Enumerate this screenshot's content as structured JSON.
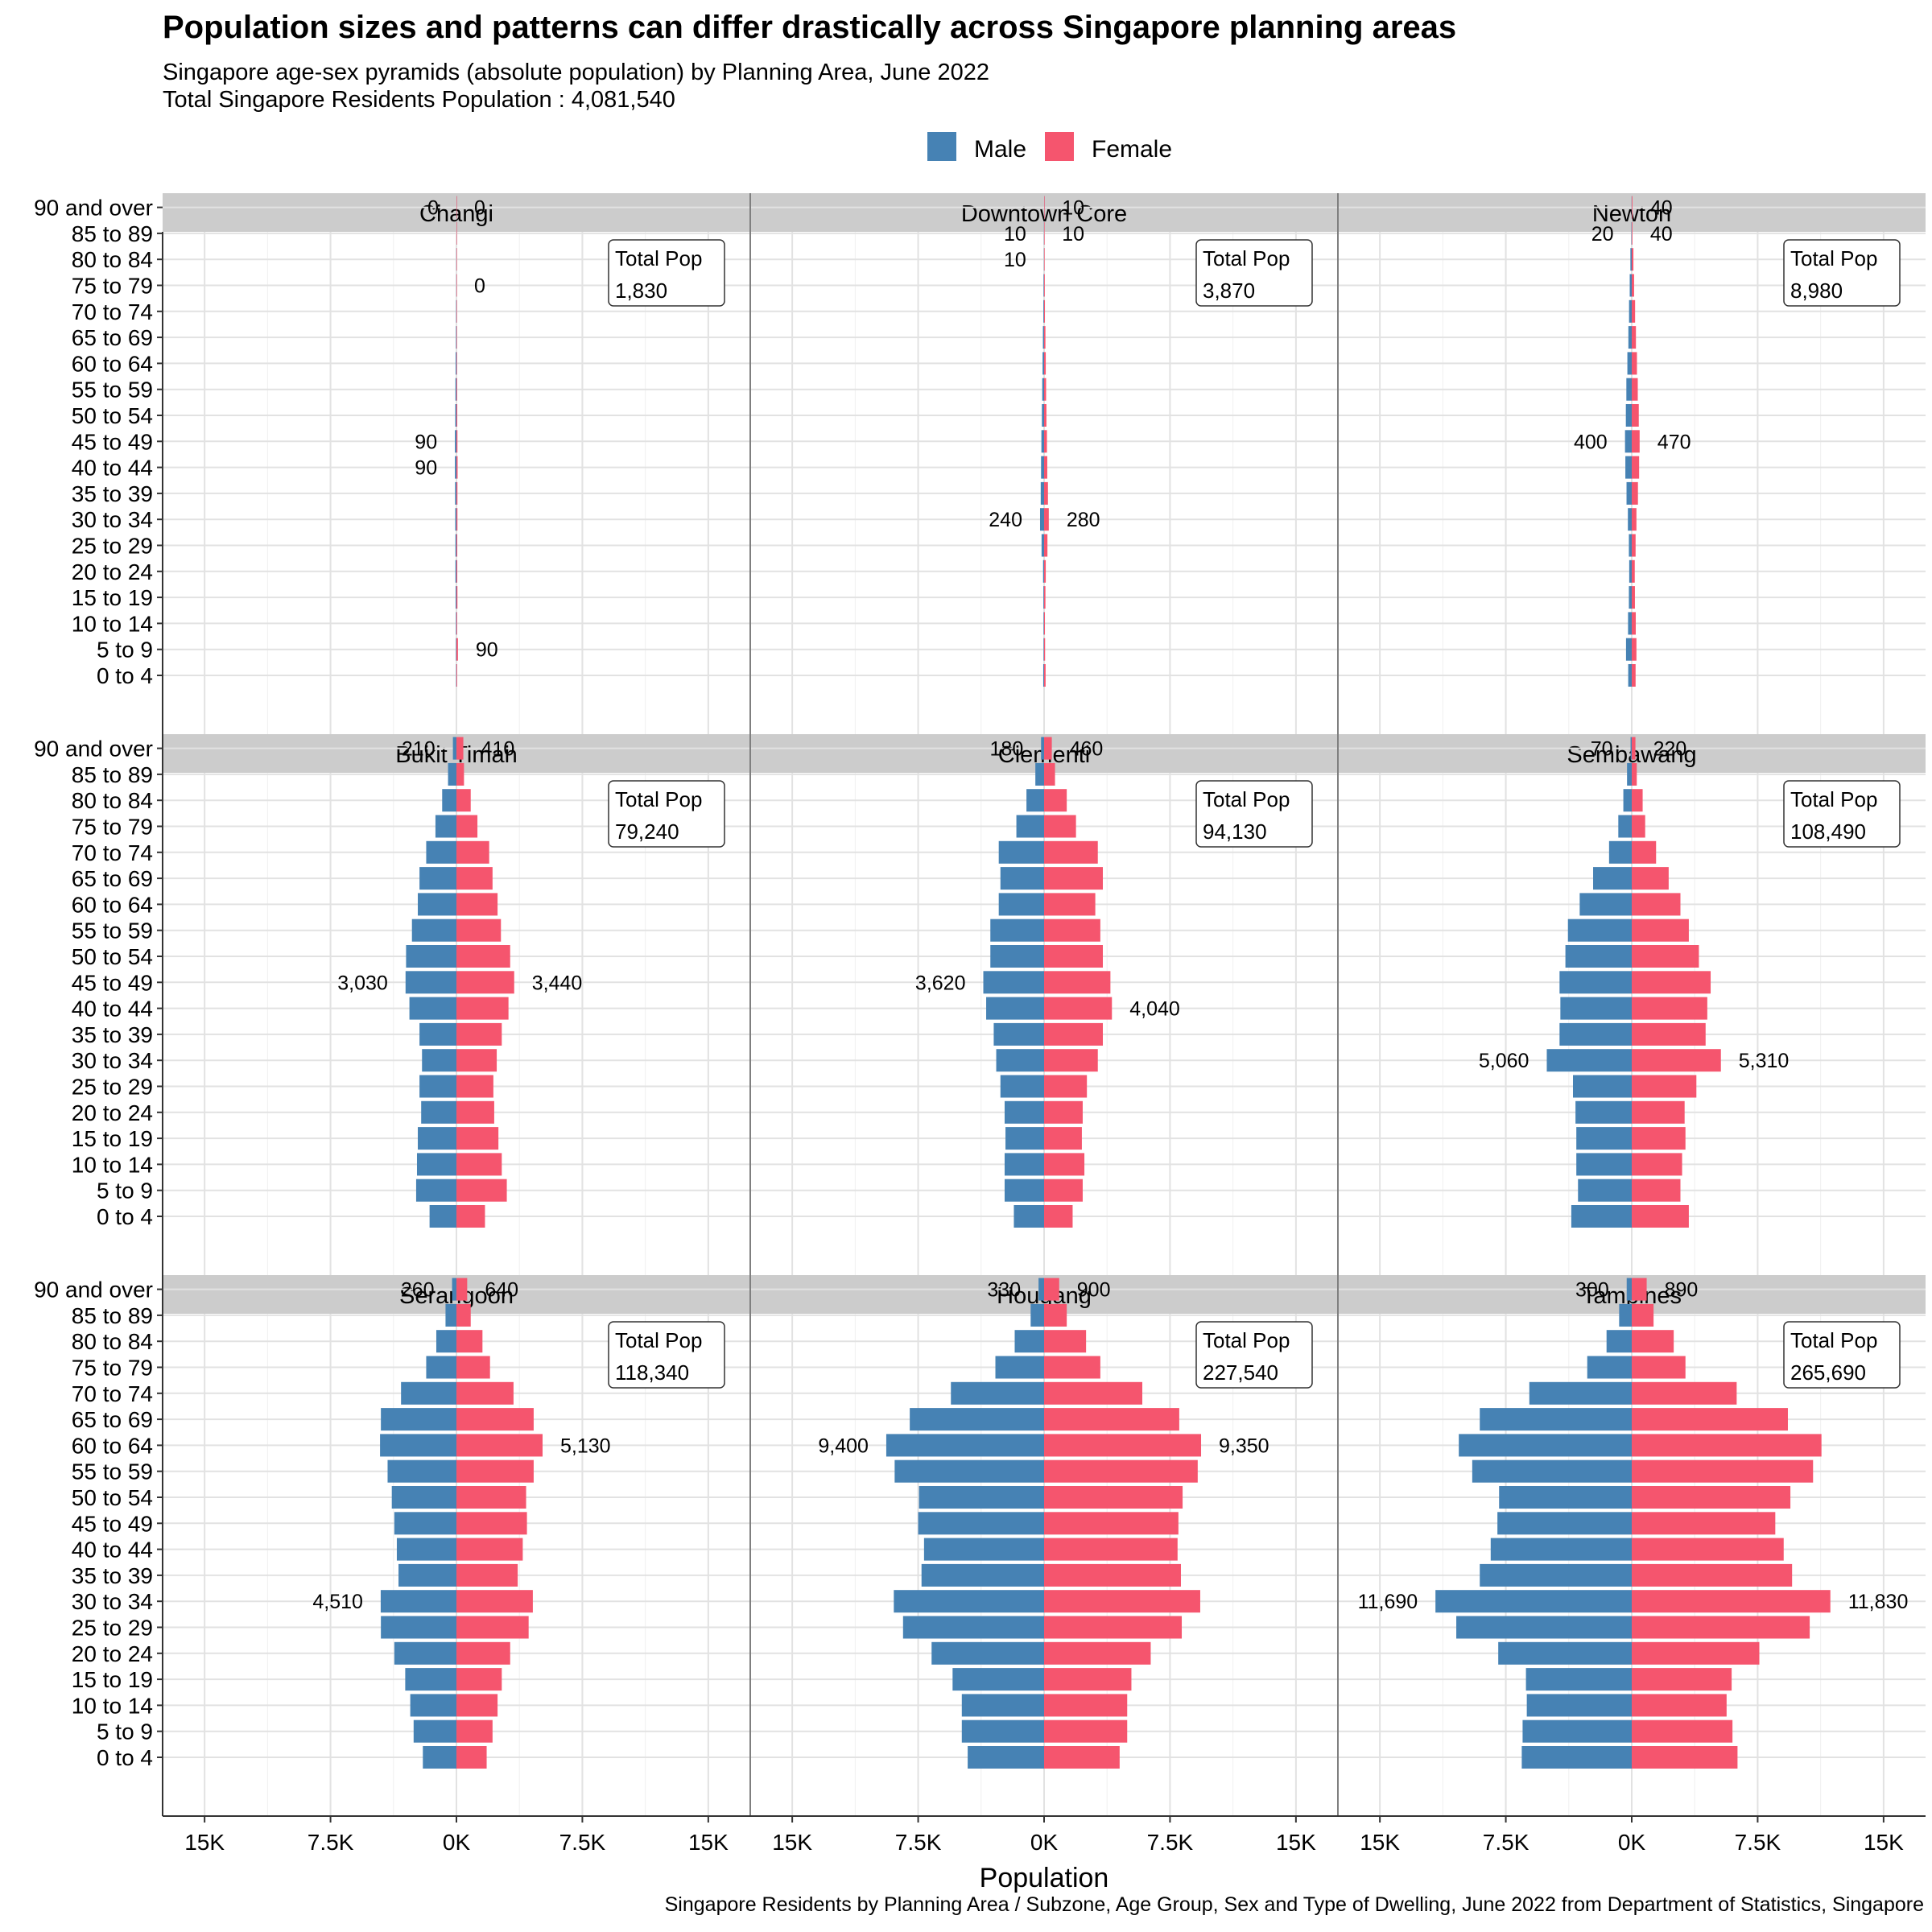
{
  "title": "Population sizes and patterns can differ drastically across Singapore planning areas",
  "subtitle_lines": [
    "Singapore age-sex pyramids (absolute population) by Planning Area, June 2022",
    "Total Singapore Residents Population : 4,081,540"
  ],
  "caption": "Singapore Residents by Planning Area / Subzone, Age Group, Sex and Type of Dwelling, June 2022 from Department of Statistics, Singapore",
  "colors": {
    "male": "#4682B4",
    "female": "#F5556E"
  },
  "chart_data": {
    "type": "bar",
    "orientation": "horizontal-pyramid",
    "xlabel": "Population",
    "x_ticks": [
      "15K",
      "7.5K",
      "0K",
      "7.5K",
      "15K"
    ],
    "xlim": [
      -17500,
      17500
    ],
    "legend": {
      "position": "top",
      "entries": [
        "Male",
        "Female"
      ]
    },
    "grid": true,
    "age_groups": [
      "0 to 4",
      "5 to 9",
      "10 to 14",
      "15 to 19",
      "20 to 24",
      "25 to 29",
      "30 to 34",
      "35 to 39",
      "40 to 44",
      "45 to 49",
      "50 to 54",
      "55 to 59",
      "60 to 64",
      "65 to 69",
      "70 to 74",
      "75 to 79",
      "80 to 84",
      "85 to 89",
      "90 and over"
    ],
    "total_label": "Total Pop",
    "panels": [
      {
        "name": "Changi",
        "total": "1,830",
        "male": [
          20,
          30,
          30,
          50,
          60,
          60,
          70,
          80,
          90,
          90,
          70,
          60,
          50,
          30,
          20,
          10,
          10,
          0,
          0
        ],
        "female": [
          40,
          90,
          40,
          60,
          50,
          50,
          60,
          60,
          70,
          60,
          50,
          40,
          30,
          20,
          10,
          0,
          0,
          0,
          0
        ],
        "labels": [
          {
            "side": "male",
            "age": 18,
            "text": "0"
          },
          {
            "side": "female",
            "age": 18,
            "text": "0"
          },
          {
            "side": "female",
            "age": 15,
            "text": "0"
          },
          {
            "side": "male",
            "age": 9,
            "text": "90"
          },
          {
            "side": "male",
            "age": 8,
            "text": "90"
          },
          {
            "side": "female",
            "age": 1,
            "text": "90"
          }
        ]
      },
      {
        "name": "Downtown Core",
        "total": "3,870",
        "male": [
          50,
          30,
          30,
          40,
          60,
          150,
          240,
          200,
          180,
          160,
          130,
          110,
          90,
          70,
          40,
          30,
          10,
          10,
          0
        ],
        "female": [
          90,
          60,
          50,
          80,
          100,
          200,
          280,
          230,
          190,
          170,
          140,
          120,
          100,
          80,
          50,
          40,
          30,
          10,
          10
        ],
        "labels": [
          {
            "side": "female",
            "age": 18,
            "text": "10"
          },
          {
            "side": "male",
            "age": 17,
            "text": "10"
          },
          {
            "side": "female",
            "age": 17,
            "text": "10"
          },
          {
            "side": "male",
            "age": 16,
            "text": "10"
          },
          {
            "side": "male",
            "age": 6,
            "text": "240"
          },
          {
            "side": "female",
            "age": 6,
            "text": "280"
          }
        ]
      },
      {
        "name": "Newton",
        "total": "8,980",
        "male": [
          210,
          340,
          220,
          170,
          150,
          170,
          230,
          310,
          380,
          400,
          350,
          320,
          260,
          200,
          160,
          120,
          80,
          20,
          10
        ],
        "female": [
          230,
          280,
          240,
          190,
          180,
          230,
          280,
          370,
          440,
          470,
          420,
          360,
          310,
          250,
          200,
          140,
          100,
          40,
          40
        ],
        "labels": [
          {
            "side": "female",
            "age": 18,
            "text": "40"
          },
          {
            "side": "male",
            "age": 17,
            "text": "20"
          },
          {
            "side": "female",
            "age": 17,
            "text": "40"
          },
          {
            "side": "male",
            "age": 9,
            "text": "400"
          },
          {
            "side": "female",
            "age": 9,
            "text": "470"
          }
        ]
      },
      {
        "name": "Bukit Timah",
        "total": "79,240",
        "male": [
          1600,
          2400,
          2350,
          2300,
          2100,
          2200,
          2050,
          2200,
          2800,
          3030,
          3000,
          2650,
          2300,
          2200,
          1800,
          1250,
          850,
          500,
          210
        ],
        "female": [
          1700,
          3000,
          2700,
          2500,
          2250,
          2200,
          2400,
          2700,
          3100,
          3440,
          3200,
          2650,
          2450,
          2150,
          1950,
          1250,
          850,
          450,
          410
        ],
        "labels": [
          {
            "side": "male",
            "age": 18,
            "text": "210"
          },
          {
            "side": "female",
            "age": 18,
            "text": "410"
          },
          {
            "side": "male",
            "age": 9,
            "text": "3,030"
          },
          {
            "side": "female",
            "age": 9,
            "text": "3,440"
          }
        ]
      },
      {
        "name": "Clementi",
        "total": "94,130",
        "male": [
          1800,
          2350,
          2350,
          2300,
          2350,
          2600,
          2850,
          3000,
          3450,
          3620,
          3200,
          3200,
          2700,
          2600,
          2700,
          1650,
          1050,
          520,
          180
        ],
        "female": [
          1700,
          2300,
          2400,
          2250,
          2300,
          2550,
          3200,
          3500,
          4040,
          3950,
          3500,
          3350,
          3050,
          3500,
          3200,
          1900,
          1350,
          650,
          460
        ],
        "labels": [
          {
            "side": "male",
            "age": 18,
            "text": "180"
          },
          {
            "side": "female",
            "age": 18,
            "text": "460"
          },
          {
            "side": "male",
            "age": 9,
            "text": "3,620"
          },
          {
            "side": "female",
            "age": 8,
            "text": "4,040"
          }
        ]
      },
      {
        "name": "Sembawang",
        "total": "108,490",
        "male": [
          3600,
          3200,
          3300,
          3300,
          3350,
          3500,
          5060,
          4300,
          4250,
          4300,
          3950,
          3800,
          3100,
          2300,
          1350,
          800,
          500,
          280,
          70
        ],
        "female": [
          3400,
          2900,
          3000,
          3200,
          3150,
          3850,
          5310,
          4400,
          4500,
          4700,
          4000,
          3400,
          2900,
          2200,
          1450,
          800,
          650,
          300,
          220
        ],
        "labels": [
          {
            "side": "male",
            "age": 18,
            "text": "70"
          },
          {
            "side": "female",
            "age": 18,
            "text": "220"
          },
          {
            "side": "male",
            "age": 6,
            "text": "5,060"
          },
          {
            "side": "female",
            "age": 6,
            "text": "5,310"
          }
        ]
      },
      {
        "name": "Serangoon",
        "total": "118,340",
        "male": [
          2000,
          2550,
          2750,
          3050,
          3700,
          4500,
          4510,
          3450,
          3550,
          3700,
          3850,
          4100,
          4550,
          4500,
          3300,
          1800,
          1200,
          650,
          260
        ],
        "female": [
          1800,
          2150,
          2450,
          2700,
          3200,
          4300,
          4550,
          3650,
          3950,
          4200,
          4150,
          4600,
          5130,
          4600,
          3400,
          2000,
          1550,
          850,
          640
        ],
        "labels": [
          {
            "side": "male",
            "age": 18,
            "text": "260"
          },
          {
            "side": "female",
            "age": 18,
            "text": "640"
          },
          {
            "side": "female",
            "age": 12,
            "text": "5,130"
          },
          {
            "side": "male",
            "age": 6,
            "text": "4,510"
          }
        ]
      },
      {
        "name": "Hougang",
        "total": "227,540",
        "male": [
          4550,
          4900,
          4900,
          5450,
          6700,
          8400,
          8950,
          7300,
          7150,
          7500,
          7450,
          8900,
          9400,
          8000,
          5550,
          2900,
          1750,
          800,
          330
        ],
        "female": [
          4500,
          4950,
          4950,
          5200,
          6350,
          8200,
          9300,
          8150,
          7950,
          8000,
          8250,
          9150,
          9350,
          8050,
          5850,
          3350,
          2500,
          1350,
          900
        ],
        "labels": [
          {
            "side": "male",
            "age": 18,
            "text": "330"
          },
          {
            "side": "female",
            "age": 18,
            "text": "900"
          },
          {
            "side": "male",
            "age": 12,
            "text": "9,400"
          },
          {
            "side": "female",
            "age": 12,
            "text": "9,350"
          }
        ]
      },
      {
        "name": "Tampines",
        "total": "265,690",
        "male": [
          6550,
          6500,
          6250,
          6300,
          7950,
          10450,
          11690,
          9050,
          8400,
          8000,
          7900,
          9500,
          10300,
          9050,
          6100,
          2650,
          1500,
          750,
          300
        ],
        "female": [
          6300,
          6000,
          5650,
          5950,
          7600,
          10600,
          11830,
          9550,
          9050,
          8550,
          9450,
          10800,
          11300,
          9300,
          6250,
          3200,
          2500,
          1300,
          890
        ],
        "labels": [
          {
            "side": "male",
            "age": 18,
            "text": "300"
          },
          {
            "side": "female",
            "age": 18,
            "text": "890"
          },
          {
            "side": "male",
            "age": 6,
            "text": "11,690"
          },
          {
            "side": "female",
            "age": 6,
            "text": "11,830"
          }
        ]
      }
    ]
  }
}
